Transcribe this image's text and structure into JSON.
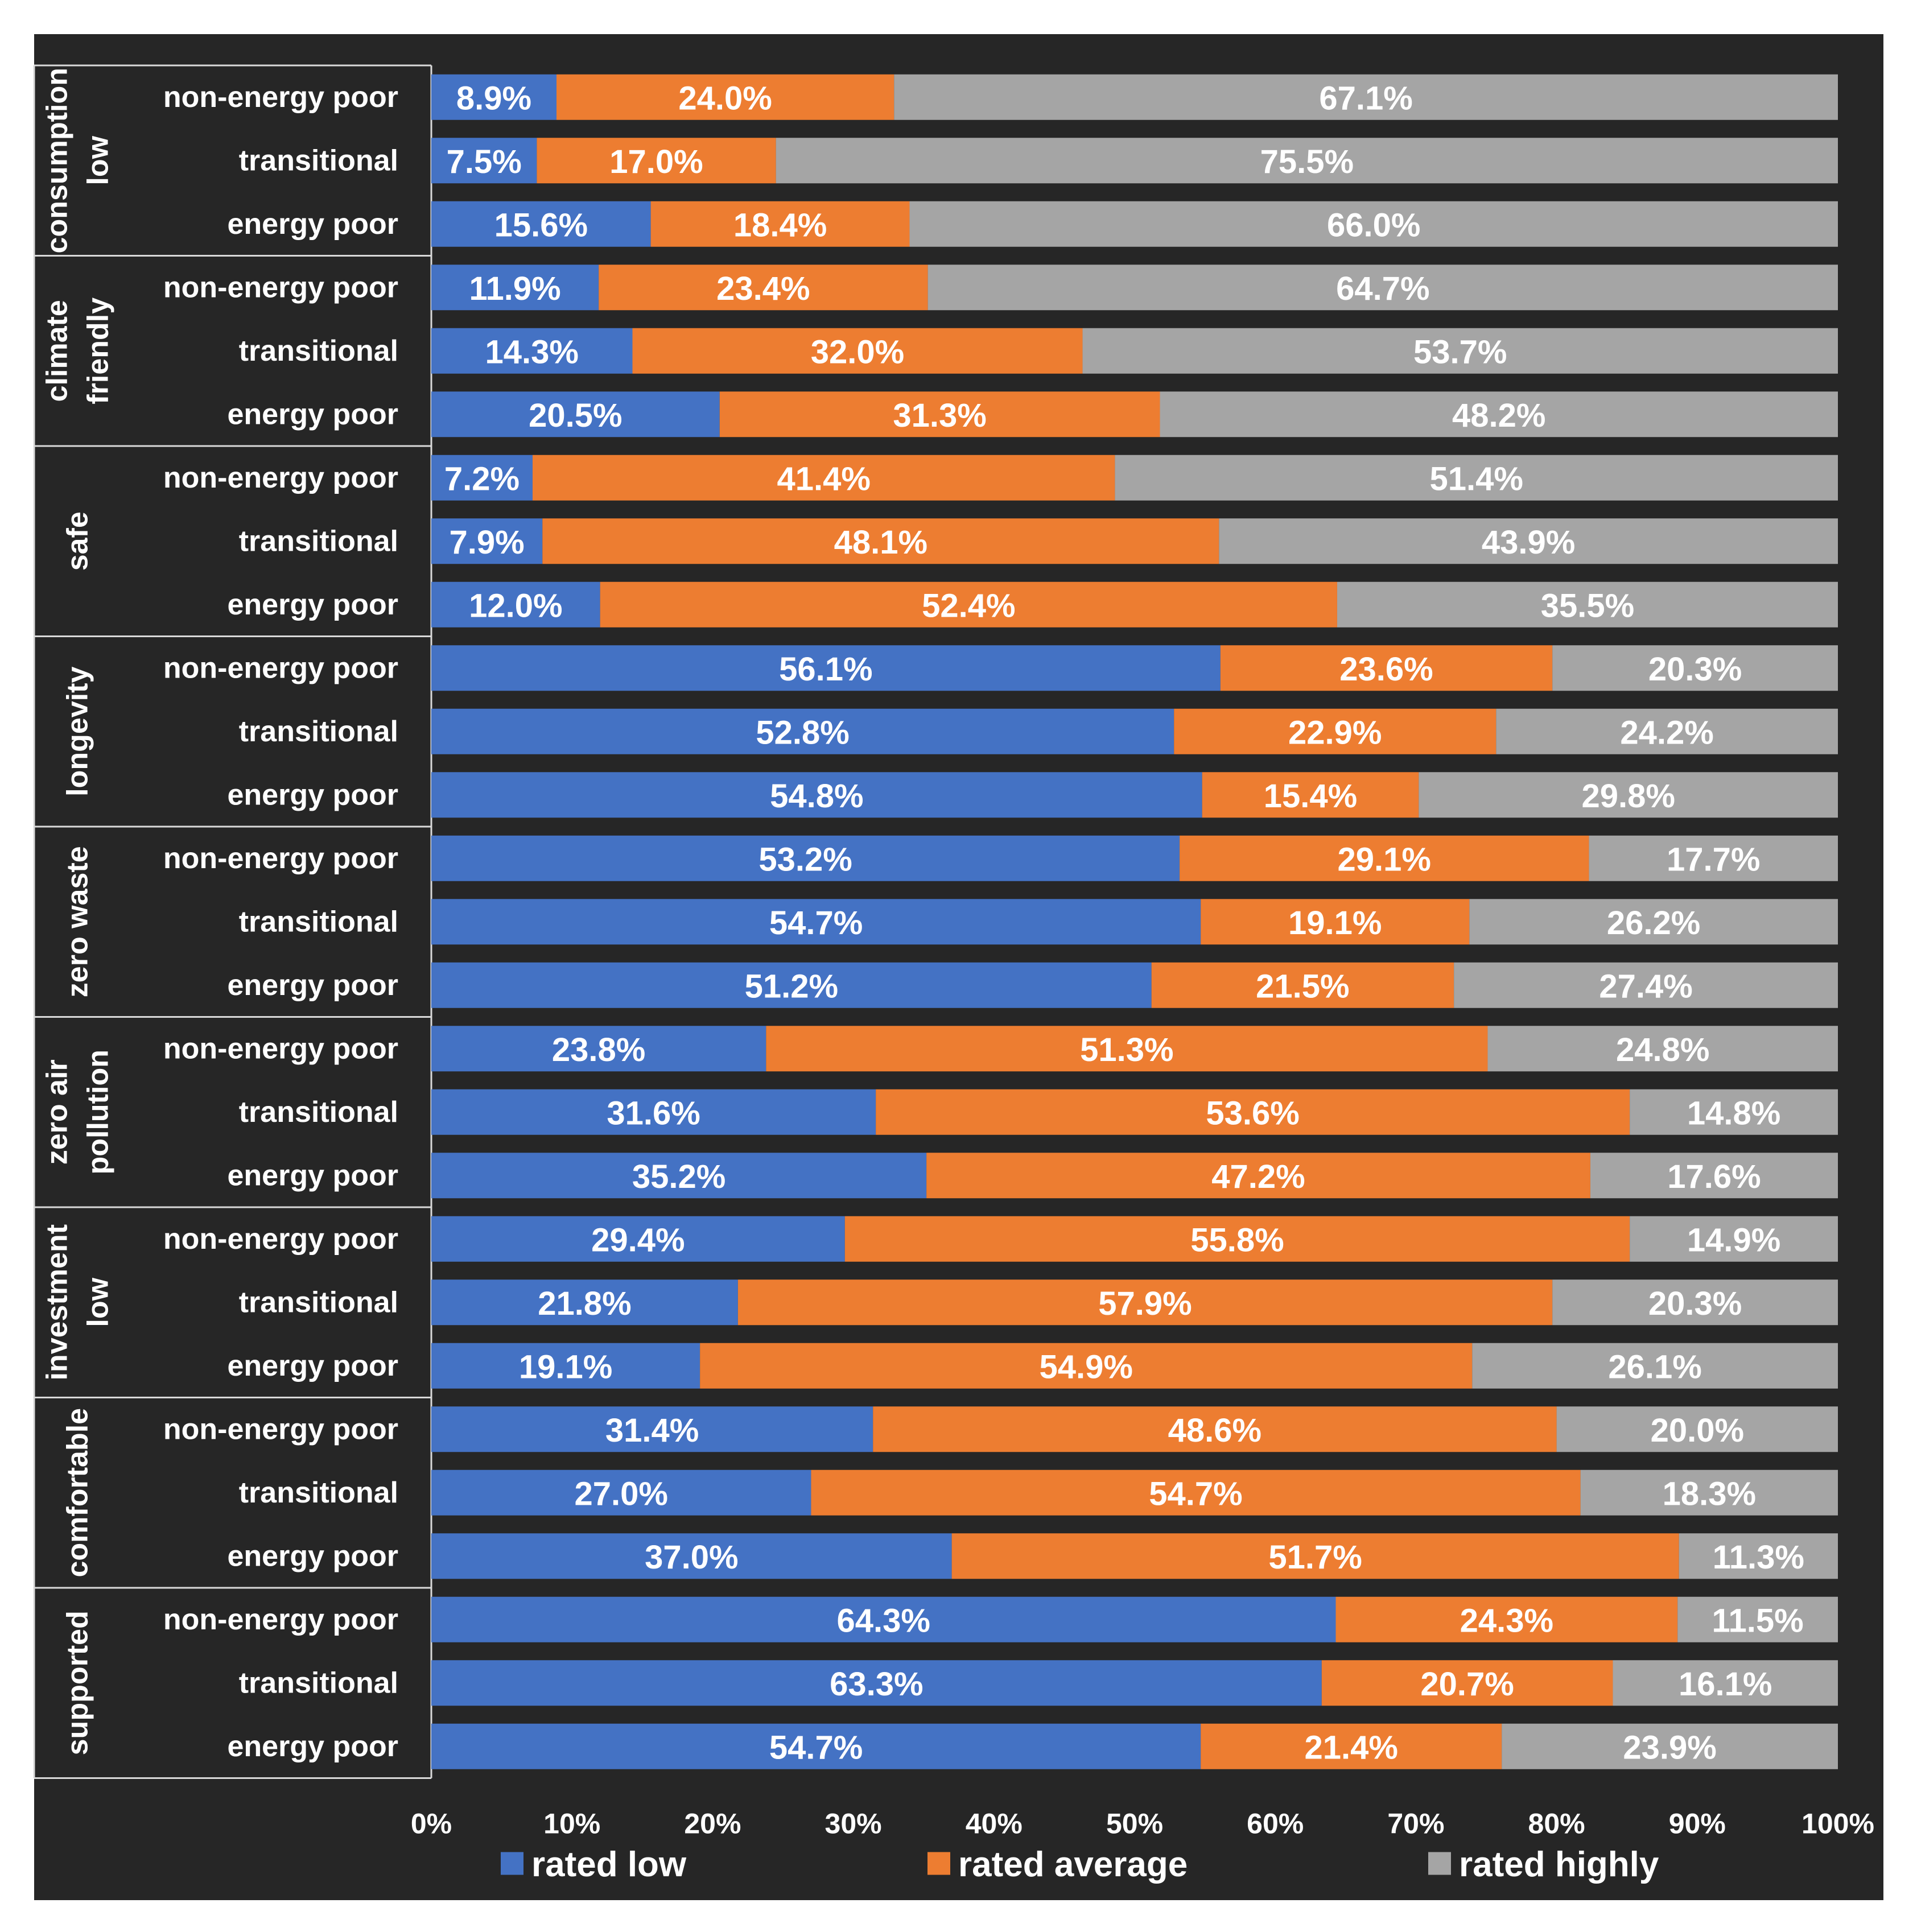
{
  "chart_data": {
    "type": "bar",
    "orientation": "horizontal",
    "stacked": true,
    "percent_stacked": true,
    "title": "",
    "xlabel": "",
    "ylabel": "",
    "xlim": [
      0,
      100
    ],
    "x_ticks": [
      "0%",
      "10%",
      "20%",
      "30%",
      "40%",
      "50%",
      "60%",
      "70%",
      "80%",
      "90%",
      "100%"
    ],
    "grid": false,
    "legend_position": "bottom",
    "colors": {
      "rated_low": "#4472C4",
      "rated_average": "#ED7D31",
      "rated_highly": "#A5A5A5",
      "background": "#262626",
      "text": "#ffffff"
    },
    "series": [
      {
        "key": "low",
        "name": "rated low"
      },
      {
        "key": "average",
        "name": "rated average"
      },
      {
        "key": "high",
        "name": "rated highly"
      }
    ],
    "groups": [
      {
        "label_lines": [
          "consumption",
          "low"
        ],
        "rows": [
          {
            "label": "non-energy poor",
            "values": [
              8.9,
              24.0,
              67.1
            ],
            "labels": [
              "8.9%",
              "24.0%",
              "67.1%"
            ]
          },
          {
            "label": "transitional",
            "values": [
              7.5,
              17.0,
              75.5
            ],
            "labels": [
              "7.5%",
              "17.0%",
              "75.5%"
            ]
          },
          {
            "label": "energy poor",
            "values": [
              15.6,
              18.4,
              66.0
            ],
            "labels": [
              "15.6%",
              "18.4%",
              "66.0%"
            ]
          }
        ]
      },
      {
        "label_lines": [
          "climate",
          "friendly"
        ],
        "rows": [
          {
            "label": "non-energy poor",
            "values": [
              11.9,
              23.4,
              64.7
            ],
            "labels": [
              "11.9%",
              "23.4%",
              "64.7%"
            ]
          },
          {
            "label": "transitional",
            "values": [
              14.3,
              32.0,
              53.7
            ],
            "labels": [
              "14.3%",
              "32.0%",
              "53.7%"
            ]
          },
          {
            "label": "energy poor",
            "values": [
              20.5,
              31.3,
              48.2
            ],
            "labels": [
              "20.5%",
              "31.3%",
              "48.2%"
            ]
          }
        ]
      },
      {
        "label_lines": [
          "safe"
        ],
        "rows": [
          {
            "label": "non-energy poor",
            "values": [
              7.2,
              41.4,
              51.4
            ],
            "labels": [
              "7.2%",
              "41.4%",
              "51.4%"
            ]
          },
          {
            "label": "transitional",
            "values": [
              7.9,
              48.1,
              43.9
            ],
            "labels": [
              "7.9%",
              "48.1%",
              "43.9%"
            ]
          },
          {
            "label": "energy poor",
            "values": [
              12.0,
              52.4,
              35.5
            ],
            "labels": [
              "12.0%",
              "52.4%",
              "35.5%"
            ]
          }
        ]
      },
      {
        "label_lines": [
          "longevity"
        ],
        "rows": [
          {
            "label": "non-energy poor",
            "values": [
              56.1,
              23.6,
              20.3
            ],
            "labels": [
              "56.1%",
              "23.6%",
              "20.3%"
            ]
          },
          {
            "label": "transitional",
            "values": [
              52.8,
              22.9,
              24.2
            ],
            "labels": [
              "52.8%",
              "22.9%",
              "24.2%"
            ]
          },
          {
            "label": "energy poor",
            "values": [
              54.8,
              15.4,
              29.8
            ],
            "labels": [
              "54.8%",
              "15.4%",
              "29.8%"
            ]
          }
        ]
      },
      {
        "label_lines": [
          "zero waste"
        ],
        "rows": [
          {
            "label": "non-energy poor",
            "values": [
              53.2,
              29.1,
              17.7
            ],
            "labels": [
              "53.2%",
              "29.1%",
              "17.7%"
            ]
          },
          {
            "label": "transitional",
            "values": [
              54.7,
              19.1,
              26.2
            ],
            "labels": [
              "54.7%",
              "19.1%",
              "26.2%"
            ]
          },
          {
            "label": "energy poor",
            "values": [
              51.2,
              21.5,
              27.4
            ],
            "labels": [
              "51.2%",
              "21.5%",
              "27.4%"
            ]
          }
        ]
      },
      {
        "label_lines": [
          "zero air",
          "pollution"
        ],
        "rows": [
          {
            "label": "non-energy poor",
            "values": [
              23.8,
              51.3,
              24.8
            ],
            "labels": [
              "23.8%",
              "51.3%",
              "24.8%"
            ]
          },
          {
            "label": "transitional",
            "values": [
              31.6,
              53.6,
              14.8
            ],
            "labels": [
              "31.6%",
              "53.6%",
              "14.8%"
            ]
          },
          {
            "label": "energy poor",
            "values": [
              35.2,
              47.2,
              17.6
            ],
            "labels": [
              "35.2%",
              "47.2%",
              "17.6%"
            ]
          }
        ]
      },
      {
        "label_lines": [
          "investment",
          "low"
        ],
        "rows": [
          {
            "label": "non-energy poor",
            "values": [
              29.4,
              55.8,
              14.9
            ],
            "labels": [
              "29.4%",
              "55.8%",
              "14.9%"
            ]
          },
          {
            "label": "transitional",
            "values": [
              21.8,
              57.9,
              20.3
            ],
            "labels": [
              "21.8%",
              "57.9%",
              "20.3%"
            ]
          },
          {
            "label": "energy poor",
            "values": [
              19.1,
              54.9,
              26.1
            ],
            "labels": [
              "19.1%",
              "54.9%",
              "26.1%"
            ]
          }
        ]
      },
      {
        "label_lines": [
          "comfortable"
        ],
        "rows": [
          {
            "label": "non-energy poor",
            "values": [
              31.4,
              48.6,
              20.0
            ],
            "labels": [
              "31.4%",
              "48.6%",
              "20.0%"
            ]
          },
          {
            "label": "transitional",
            "values": [
              27.0,
              54.7,
              18.3
            ],
            "labels": [
              "27.0%",
              "54.7%",
              "18.3%"
            ]
          },
          {
            "label": "energy poor",
            "values": [
              37.0,
              51.7,
              11.3
            ],
            "labels": [
              "37.0%",
              "51.7%",
              "11.3%"
            ]
          }
        ]
      },
      {
        "label_lines": [
          "supported"
        ],
        "rows": [
          {
            "label": "non-energy poor",
            "values": [
              64.3,
              24.3,
              11.5
            ],
            "labels": [
              "64.3%",
              "24.3%",
              "11.5%"
            ]
          },
          {
            "label": "transitional",
            "values": [
              63.3,
              20.7,
              16.1
            ],
            "labels": [
              "63.3%",
              "20.7%",
              "16.1%"
            ]
          },
          {
            "label": "energy poor",
            "values": [
              54.7,
              21.4,
              23.9
            ],
            "labels": [
              "54.7%",
              "21.4%",
              "23.9%"
            ]
          }
        ]
      }
    ]
  }
}
